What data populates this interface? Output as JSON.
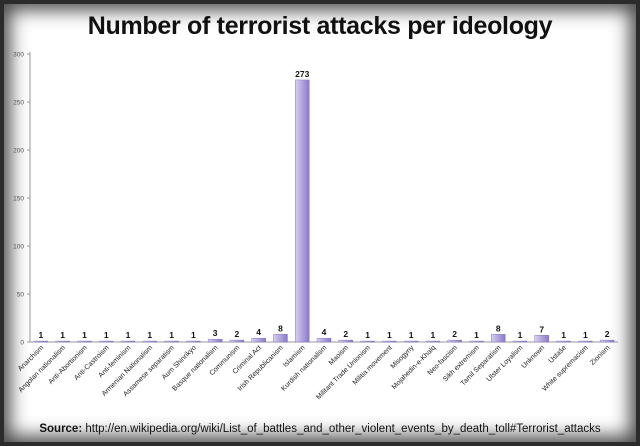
{
  "chart_data": {
    "type": "bar",
    "title": "Number of terrorist attacks per ideology",
    "categories": [
      "Anarchism",
      "Angolan nationalism",
      "Anti-Abortionism",
      "Anti-Castroism",
      "Anti-feminism",
      "Armenian Nationalism",
      "Assamese separatism",
      "Aum Shinrikyo",
      "Basque nationalism",
      "Communism",
      "Criminal Act",
      "Irish Republicanism",
      "Islamism",
      "Kurdish nationalism",
      "Maoism",
      "Militant Trade Unionism",
      "Militia movement",
      "Misogyny",
      "Mojahedin-e-Khalq",
      "Neo-fascism",
      "Sikh extremism",
      "Tamil Separatism",
      "Ulster Loyalism",
      "Unknown",
      "Ustaše",
      "White supremacism",
      "Zionism"
    ],
    "values": [
      1,
      1,
      1,
      1,
      1,
      1,
      1,
      1,
      3,
      2,
      4,
      8,
      273,
      4,
      2,
      1,
      1,
      1,
      1,
      2,
      1,
      8,
      1,
      7,
      1,
      1,
      2
    ],
    "ylim": [
      0,
      300
    ],
    "yticks": [
      "0",
      "50",
      "100",
      "150",
      "200",
      "250",
      "300"
    ],
    "xlabel": "",
    "ylabel": "",
    "grid": false,
    "legend": "none",
    "colors": {
      "bar_light": "#d9d0f2",
      "bar_dark": "#8a78c8",
      "axis": "#9a9a9a"
    }
  },
  "source": {
    "label": "Source:",
    "url": " http://en.wikipedia.org/wiki/List_of_battles_and_other_violent_events_by_death_toll#Terrorist_attacks"
  }
}
